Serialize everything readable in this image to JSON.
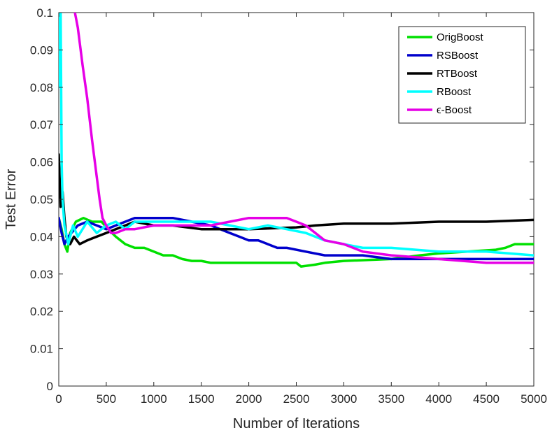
{
  "chart_data": {
    "type": "line",
    "title": "",
    "xlabel": "Number of Iterations",
    "ylabel": "Test Error",
    "xlim": [
      0,
      5000
    ],
    "ylim": [
      0,
      0.1
    ],
    "xticks": [
      0,
      500,
      1000,
      1500,
      2000,
      2500,
      3000,
      3500,
      4000,
      4500,
      5000
    ],
    "yticks": [
      0,
      0.01,
      0.02,
      0.03,
      0.04,
      0.05,
      0.06,
      0.07,
      0.08,
      0.09,
      0.1
    ],
    "ytick_labels": [
      "0",
      "0.01",
      "0.02",
      "0.03",
      "0.04",
      "0.05",
      "0.06",
      "0.07",
      "0.08",
      "0.09",
      "0.1"
    ],
    "grid": false,
    "legend_position": "top-right",
    "series": [
      {
        "name": "OrigBoost",
        "color": "#00e000",
        "points": [
          [
            0,
            0.045
          ],
          [
            30,
            0.042
          ],
          [
            60,
            0.038
          ],
          [
            90,
            0.036
          ],
          [
            120,
            0.041
          ],
          [
            180,
            0.044
          ],
          [
            260,
            0.045
          ],
          [
            350,
            0.044
          ],
          [
            450,
            0.044
          ],
          [
            520,
            0.042
          ],
          [
            600,
            0.04
          ],
          [
            700,
            0.038
          ],
          [
            800,
            0.037
          ],
          [
            900,
            0.037
          ],
          [
            1000,
            0.036
          ],
          [
            1100,
            0.035
          ],
          [
            1200,
            0.035
          ],
          [
            1300,
            0.034
          ],
          [
            1400,
            0.0335
          ],
          [
            1500,
            0.0335
          ],
          [
            1600,
            0.033
          ],
          [
            2000,
            0.033
          ],
          [
            2500,
            0.033
          ],
          [
            2550,
            0.032
          ],
          [
            2700,
            0.0325
          ],
          [
            2800,
            0.033
          ],
          [
            3000,
            0.0335
          ],
          [
            3500,
            0.034
          ],
          [
            3800,
            0.035
          ],
          [
            4000,
            0.0355
          ],
          [
            4300,
            0.036
          ],
          [
            4600,
            0.0365
          ],
          [
            4700,
            0.037
          ],
          [
            4800,
            0.038
          ],
          [
            5000,
            0.038
          ]
        ]
      },
      {
        "name": "RSBoost",
        "color": "#0000cc",
        "points": [
          [
            0,
            0.045
          ],
          [
            30,
            0.041
          ],
          [
            60,
            0.038
          ],
          [
            100,
            0.04
          ],
          [
            200,
            0.043
          ],
          [
            300,
            0.044
          ],
          [
            400,
            0.043
          ],
          [
            500,
            0.042
          ],
          [
            600,
            0.043
          ],
          [
            700,
            0.044
          ],
          [
            800,
            0.045
          ],
          [
            1000,
            0.045
          ],
          [
            1200,
            0.045
          ],
          [
            1400,
            0.044
          ],
          [
            1600,
            0.043
          ],
          [
            1700,
            0.042
          ],
          [
            1800,
            0.041
          ],
          [
            1900,
            0.04
          ],
          [
            2000,
            0.039
          ],
          [
            2100,
            0.039
          ],
          [
            2200,
            0.038
          ],
          [
            2300,
            0.037
          ],
          [
            2400,
            0.037
          ],
          [
            2600,
            0.036
          ],
          [
            2800,
            0.035
          ],
          [
            3000,
            0.035
          ],
          [
            3200,
            0.035
          ],
          [
            3500,
            0.034
          ],
          [
            4000,
            0.034
          ],
          [
            4500,
            0.034
          ],
          [
            5000,
            0.034
          ]
        ]
      },
      {
        "name": "RTBoost",
        "color": "#000000",
        "points": [
          [
            0,
            0.062
          ],
          [
            20,
            0.048
          ],
          [
            40,
            0.052
          ],
          [
            60,
            0.045
          ],
          [
            80,
            0.04
          ],
          [
            120,
            0.038
          ],
          [
            160,
            0.04
          ],
          [
            220,
            0.038
          ],
          [
            300,
            0.039
          ],
          [
            400,
            0.04
          ],
          [
            500,
            0.041
          ],
          [
            600,
            0.042
          ],
          [
            700,
            0.043
          ],
          [
            800,
            0.044
          ],
          [
            1000,
            0.043
          ],
          [
            1200,
            0.043
          ],
          [
            1500,
            0.042
          ],
          [
            2000,
            0.042
          ],
          [
            2500,
            0.0425
          ],
          [
            2700,
            0.043
          ],
          [
            3000,
            0.0435
          ],
          [
            3500,
            0.0435
          ],
          [
            4000,
            0.044
          ],
          [
            4500,
            0.044
          ],
          [
            5000,
            0.0445
          ]
        ]
      },
      {
        "name": "RBoost",
        "color": "#00ffff",
        "points": [
          [
            0,
            0.08
          ],
          [
            10,
            0.1
          ],
          [
            20,
            0.1
          ],
          [
            30,
            0.06
          ],
          [
            40,
            0.05
          ],
          [
            60,
            0.043
          ],
          [
            100,
            0.038
          ],
          [
            150,
            0.043
          ],
          [
            200,
            0.04
          ],
          [
            300,
            0.044
          ],
          [
            400,
            0.041
          ],
          [
            500,
            0.043
          ],
          [
            600,
            0.044
          ],
          [
            700,
            0.042
          ],
          [
            800,
            0.044
          ],
          [
            1000,
            0.044
          ],
          [
            1200,
            0.044
          ],
          [
            1400,
            0.044
          ],
          [
            1600,
            0.044
          ],
          [
            1800,
            0.043
          ],
          [
            2000,
            0.042
          ],
          [
            2200,
            0.043
          ],
          [
            2400,
            0.042
          ],
          [
            2600,
            0.041
          ],
          [
            2800,
            0.039
          ],
          [
            3000,
            0.038
          ],
          [
            3200,
            0.037
          ],
          [
            3500,
            0.037
          ],
          [
            4000,
            0.036
          ],
          [
            4500,
            0.036
          ],
          [
            5000,
            0.035
          ]
        ]
      },
      {
        "name": "ϵ-Boost",
        "color": "#e600e6",
        "points": [
          [
            170,
            0.1
          ],
          [
            200,
            0.096
          ],
          [
            250,
            0.086
          ],
          [
            300,
            0.077
          ],
          [
            350,
            0.066
          ],
          [
            400,
            0.056
          ],
          [
            430,
            0.05
          ],
          [
            460,
            0.045
          ],
          [
            500,
            0.043
          ],
          [
            550,
            0.041
          ],
          [
            600,
            0.041
          ],
          [
            700,
            0.042
          ],
          [
            800,
            0.042
          ],
          [
            1000,
            0.043
          ],
          [
            1200,
            0.043
          ],
          [
            1400,
            0.043
          ],
          [
            1600,
            0.043
          ],
          [
            1800,
            0.044
          ],
          [
            2000,
            0.045
          ],
          [
            2200,
            0.045
          ],
          [
            2400,
            0.045
          ],
          [
            2500,
            0.044
          ],
          [
            2600,
            0.043
          ],
          [
            2700,
            0.041
          ],
          [
            2800,
            0.039
          ],
          [
            3000,
            0.038
          ],
          [
            3200,
            0.036
          ],
          [
            3500,
            0.035
          ],
          [
            4000,
            0.034
          ],
          [
            4500,
            0.033
          ],
          [
            5000,
            0.033
          ]
        ]
      }
    ]
  }
}
